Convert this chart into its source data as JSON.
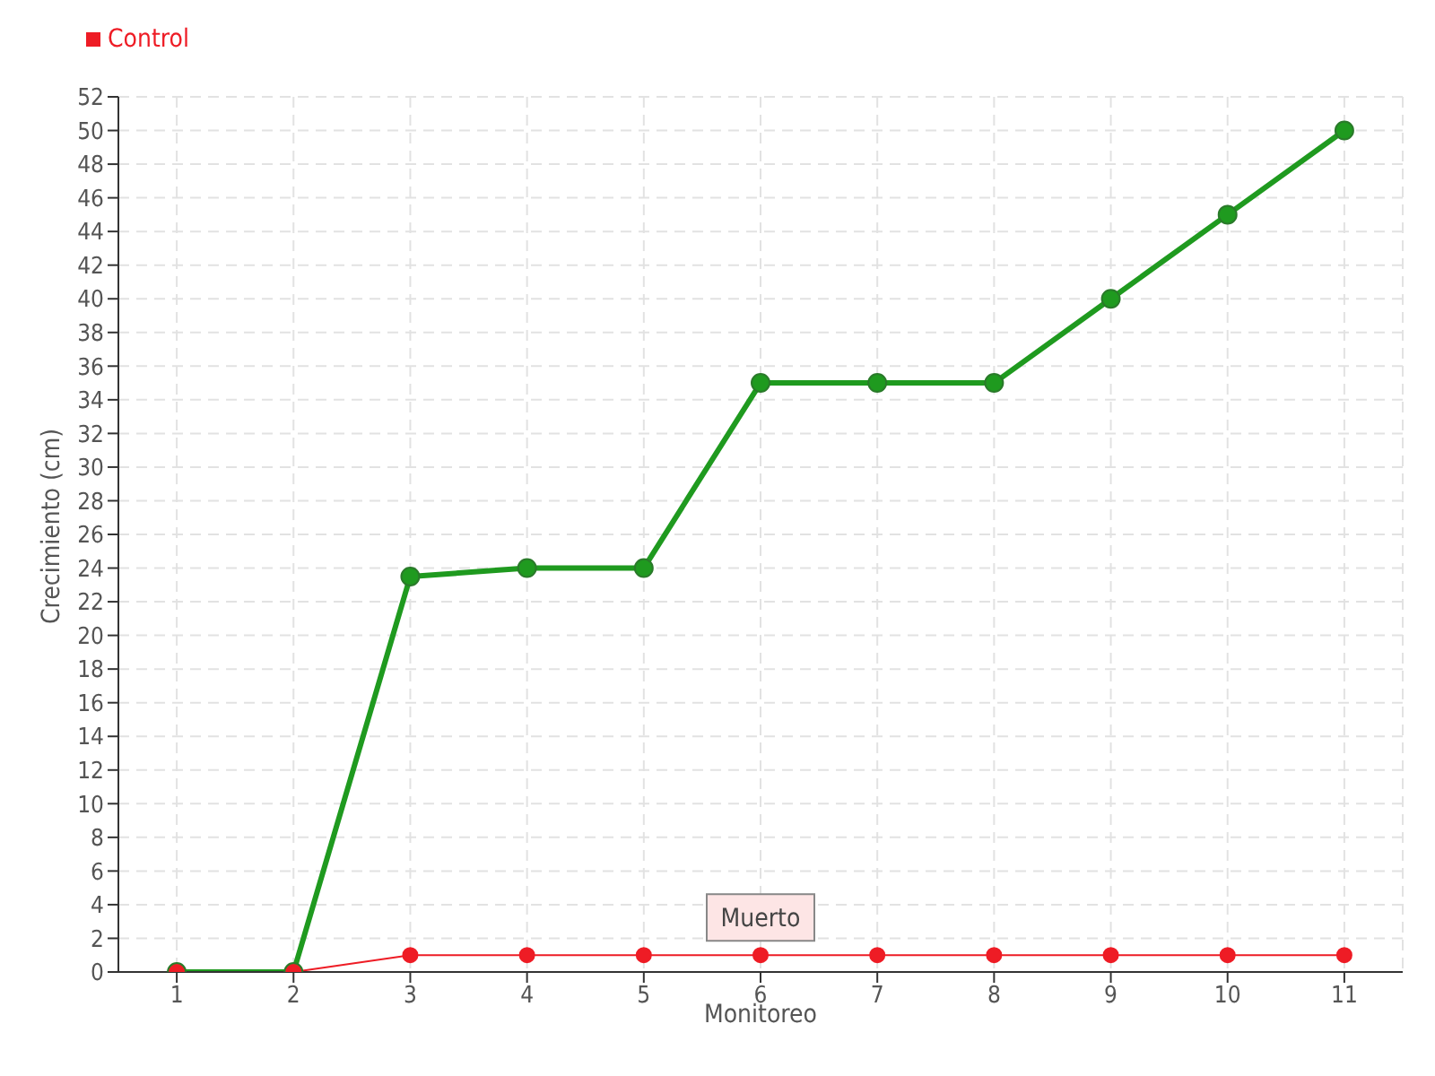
{
  "chart_data": {
    "type": "line",
    "xlabel": "Monitoreo",
    "ylabel": "Crecimiento (cm)",
    "categories": [
      "1",
      "2",
      "3",
      "4",
      "5",
      "6",
      "7",
      "8",
      "9",
      "10",
      "11"
    ],
    "series": [
      {
        "color": "#1f9a1f",
        "values": [
          0,
          0,
          23.5,
          24,
          24,
          35,
          35,
          35,
          40,
          45,
          50
        ]
      },
      {
        "name": "Control",
        "color": "#ee1c25",
        "values": [
          0,
          0,
          1,
          1,
          1,
          1,
          1,
          1,
          1,
          1,
          1
        ]
      }
    ],
    "ylim": [
      0,
      52
    ],
    "yticks": [
      0,
      2,
      4,
      6,
      8,
      10,
      12,
      14,
      16,
      18,
      20,
      22,
      24,
      26,
      28,
      30,
      32,
      34,
      36,
      38,
      40,
      42,
      44,
      46,
      48,
      50,
      52
    ],
    "grid": true,
    "legend": "top left",
    "marker": "circle",
    "line_style": "solid",
    "annotations": [
      {
        "text": "Muerto",
        "x": "6",
        "y": 1
      }
    ]
  }
}
